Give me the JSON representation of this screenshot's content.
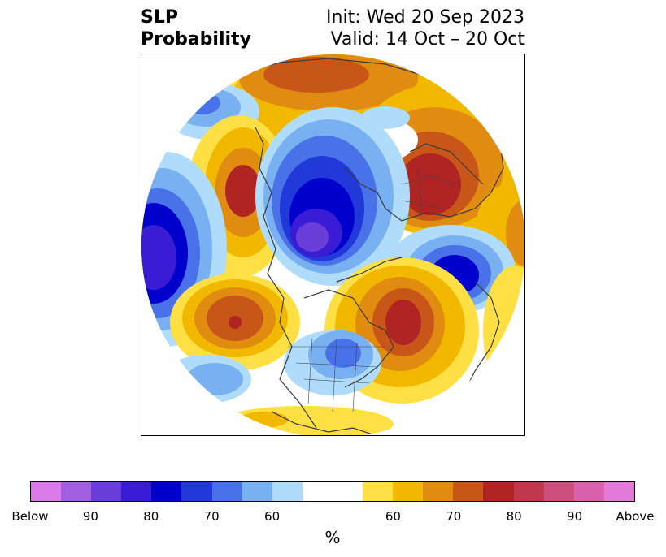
{
  "title": {
    "left_line1": "SLP",
    "left_line2": "Probability",
    "right_line1": "Init: Wed 20 Sep 2023",
    "right_line2": "Valid: 14 Oct – 20 Oct"
  },
  "colorbar": {
    "unit": "%",
    "colors": [
      "#d97ae8",
      "#a05fe0",
      "#6a3ed8",
      "#3a1cd4",
      "#0000cc",
      "#2139d8",
      "#4a72e8",
      "#78b0f2",
      "#aedcfa",
      "#ffffff",
      "#ffffff",
      "#ffe044",
      "#f2b800",
      "#e08c10",
      "#c85618",
      "#b02424",
      "#c0384e",
      "#cc4f7e",
      "#d860ac",
      "#e27ad8"
    ],
    "tick_labels": [
      "Below",
      "90",
      "80",
      "70",
      "60",
      "60",
      "70",
      "80",
      "90",
      "Above"
    ]
  },
  "map": {
    "projection": "north-polar-stereographic",
    "features": [
      {
        "name": "europe-above-center",
        "category": "above",
        "level": "red"
      },
      {
        "name": "north-pacific-above-center",
        "category": "above",
        "level": "red"
      },
      {
        "name": "north-atlantic-above-center",
        "category": "above",
        "level": "red"
      },
      {
        "name": "alaska-above-center",
        "category": "above",
        "level": "red"
      },
      {
        "name": "arctic-below-center",
        "category": "below",
        "level": "violet"
      },
      {
        "name": "siberia-pacific-below-center",
        "category": "below",
        "level": "blue"
      },
      {
        "name": "central-asia-below-center",
        "category": "below",
        "level": "blue"
      },
      {
        "name": "great-lakes-below-center",
        "category": "below",
        "level": "blue"
      },
      {
        "name": "pacific-west-below-center",
        "category": "below",
        "level": "light-blue"
      }
    ]
  }
}
